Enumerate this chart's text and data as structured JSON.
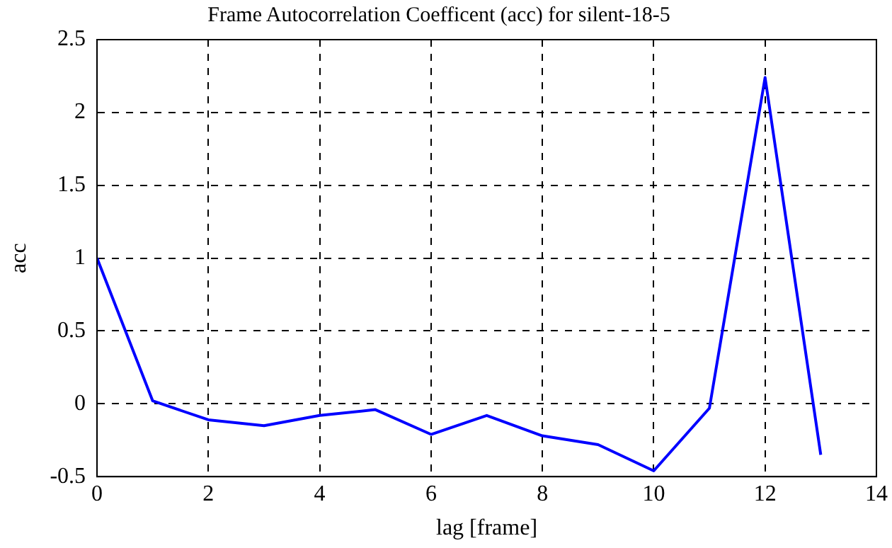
{
  "chart_data": {
    "type": "line",
    "title": "Frame Autocorrelation Coefficent (acc) for silent-18-5",
    "xlabel": "lag [frame]",
    "ylabel": "acc",
    "x": [
      0,
      1,
      2,
      3,
      4,
      5,
      6,
      7,
      8,
      9,
      10,
      11,
      12,
      13
    ],
    "series": [
      {
        "color": "#0000ff",
        "values": [
          1.0,
          0.02,
          -0.11,
          -0.15,
          -0.08,
          -0.04,
          -0.21,
          -0.08,
          -0.22,
          -0.28,
          -0.46,
          -0.03,
          2.24,
          -0.35
        ]
      }
    ],
    "xlim": [
      0,
      14
    ],
    "xticks": [
      0,
      2,
      4,
      6,
      8,
      10,
      12,
      14
    ],
    "ylim": [
      -0.5,
      2.5
    ],
    "yticks": [
      -0.5,
      0,
      0.5,
      1,
      1.5,
      2,
      2.5
    ],
    "grid": true,
    "legend": false,
    "marker": "none",
    "line_style": "solid"
  }
}
